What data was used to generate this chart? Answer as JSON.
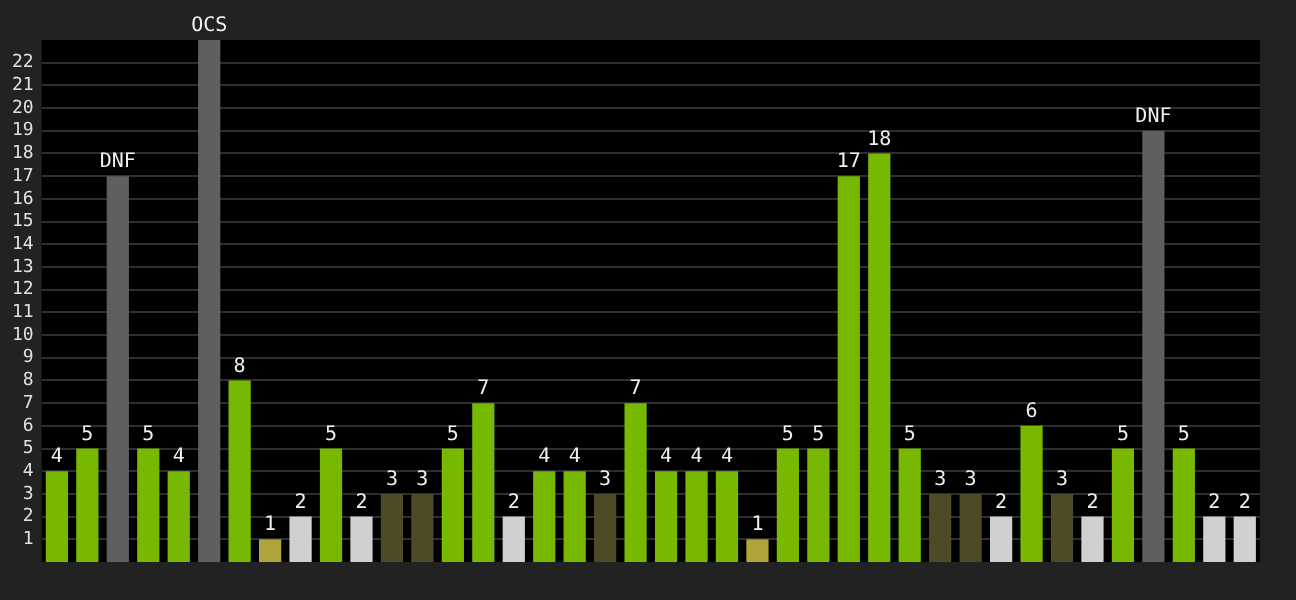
{
  "chart_data": {
    "type": "bar",
    "categories": [
      null,
      null,
      null,
      null,
      null,
      null,
      null,
      null,
      null,
      null,
      null,
      null,
      null,
      null,
      null,
      null,
      null,
      null,
      null,
      null,
      null,
      null,
      null,
      null,
      null,
      null,
      null,
      null,
      null,
      null,
      null,
      null,
      null,
      null,
      null,
      null,
      null,
      null,
      null,
      null
    ],
    "values": [
      4,
      5,
      17,
      5,
      4,
      23,
      8,
      1,
      2,
      5,
      2,
      3,
      3,
      5,
      7,
      2,
      4,
      4,
      3,
      7,
      4,
      4,
      4,
      1,
      5,
      5,
      17,
      18,
      5,
      3,
      3,
      2,
      6,
      3,
      2,
      5,
      19,
      5,
      2,
      2
    ],
    "colors": [
      "#76b900",
      "#76b900",
      "#5f5f5f",
      "#76b900",
      "#76b900",
      "#5f5f5f",
      "#76b900",
      "#b0a53a",
      "#d0d0d0",
      "#76b900",
      "#d0d0d0",
      "#4d4a25",
      "#4d4a25",
      "#76b900",
      "#76b900",
      "#d0d0d0",
      "#76b900",
      "#76b900",
      "#4d4a25",
      "#76b900",
      "#76b900",
      "#76b900",
      "#76b900",
      "#b0a53a",
      "#76b900",
      "#76b900",
      "#76b900",
      "#76b900",
      "#76b900",
      "#4d4a25",
      "#4d4a25",
      "#d0d0d0",
      "#76b900",
      "#4d4a25",
      "#d0d0d0",
      "#76b900",
      "#5f5f5f",
      "#76b900",
      "#d0d0d0",
      "#d0d0d0"
    ],
    "value_labels": [
      "4",
      "5",
      "DNF",
      "5",
      "4",
      "OCS",
      "8",
      "1",
      "2",
      "5",
      "2",
      "3",
      "3",
      "5",
      "7",
      "2",
      "4",
      "4",
      "3",
      "7",
      "4",
      "4",
      "4",
      "1",
      "5",
      "5",
      "17",
      "18",
      "5",
      "3",
      "3",
      "2",
      "6",
      "3",
      "2",
      "5",
      "DNF",
      "5",
      "2",
      "2"
    ],
    "ylim": [
      0,
      23
    ],
    "yticks": [
      1,
      2,
      3,
      4,
      5,
      6,
      7,
      8,
      9,
      10,
      11,
      12,
      13,
      14,
      15,
      16,
      17,
      18,
      19,
      20,
      21,
      22
    ],
    "grid": "y",
    "tick_labels": "y",
    "legend": false
  }
}
